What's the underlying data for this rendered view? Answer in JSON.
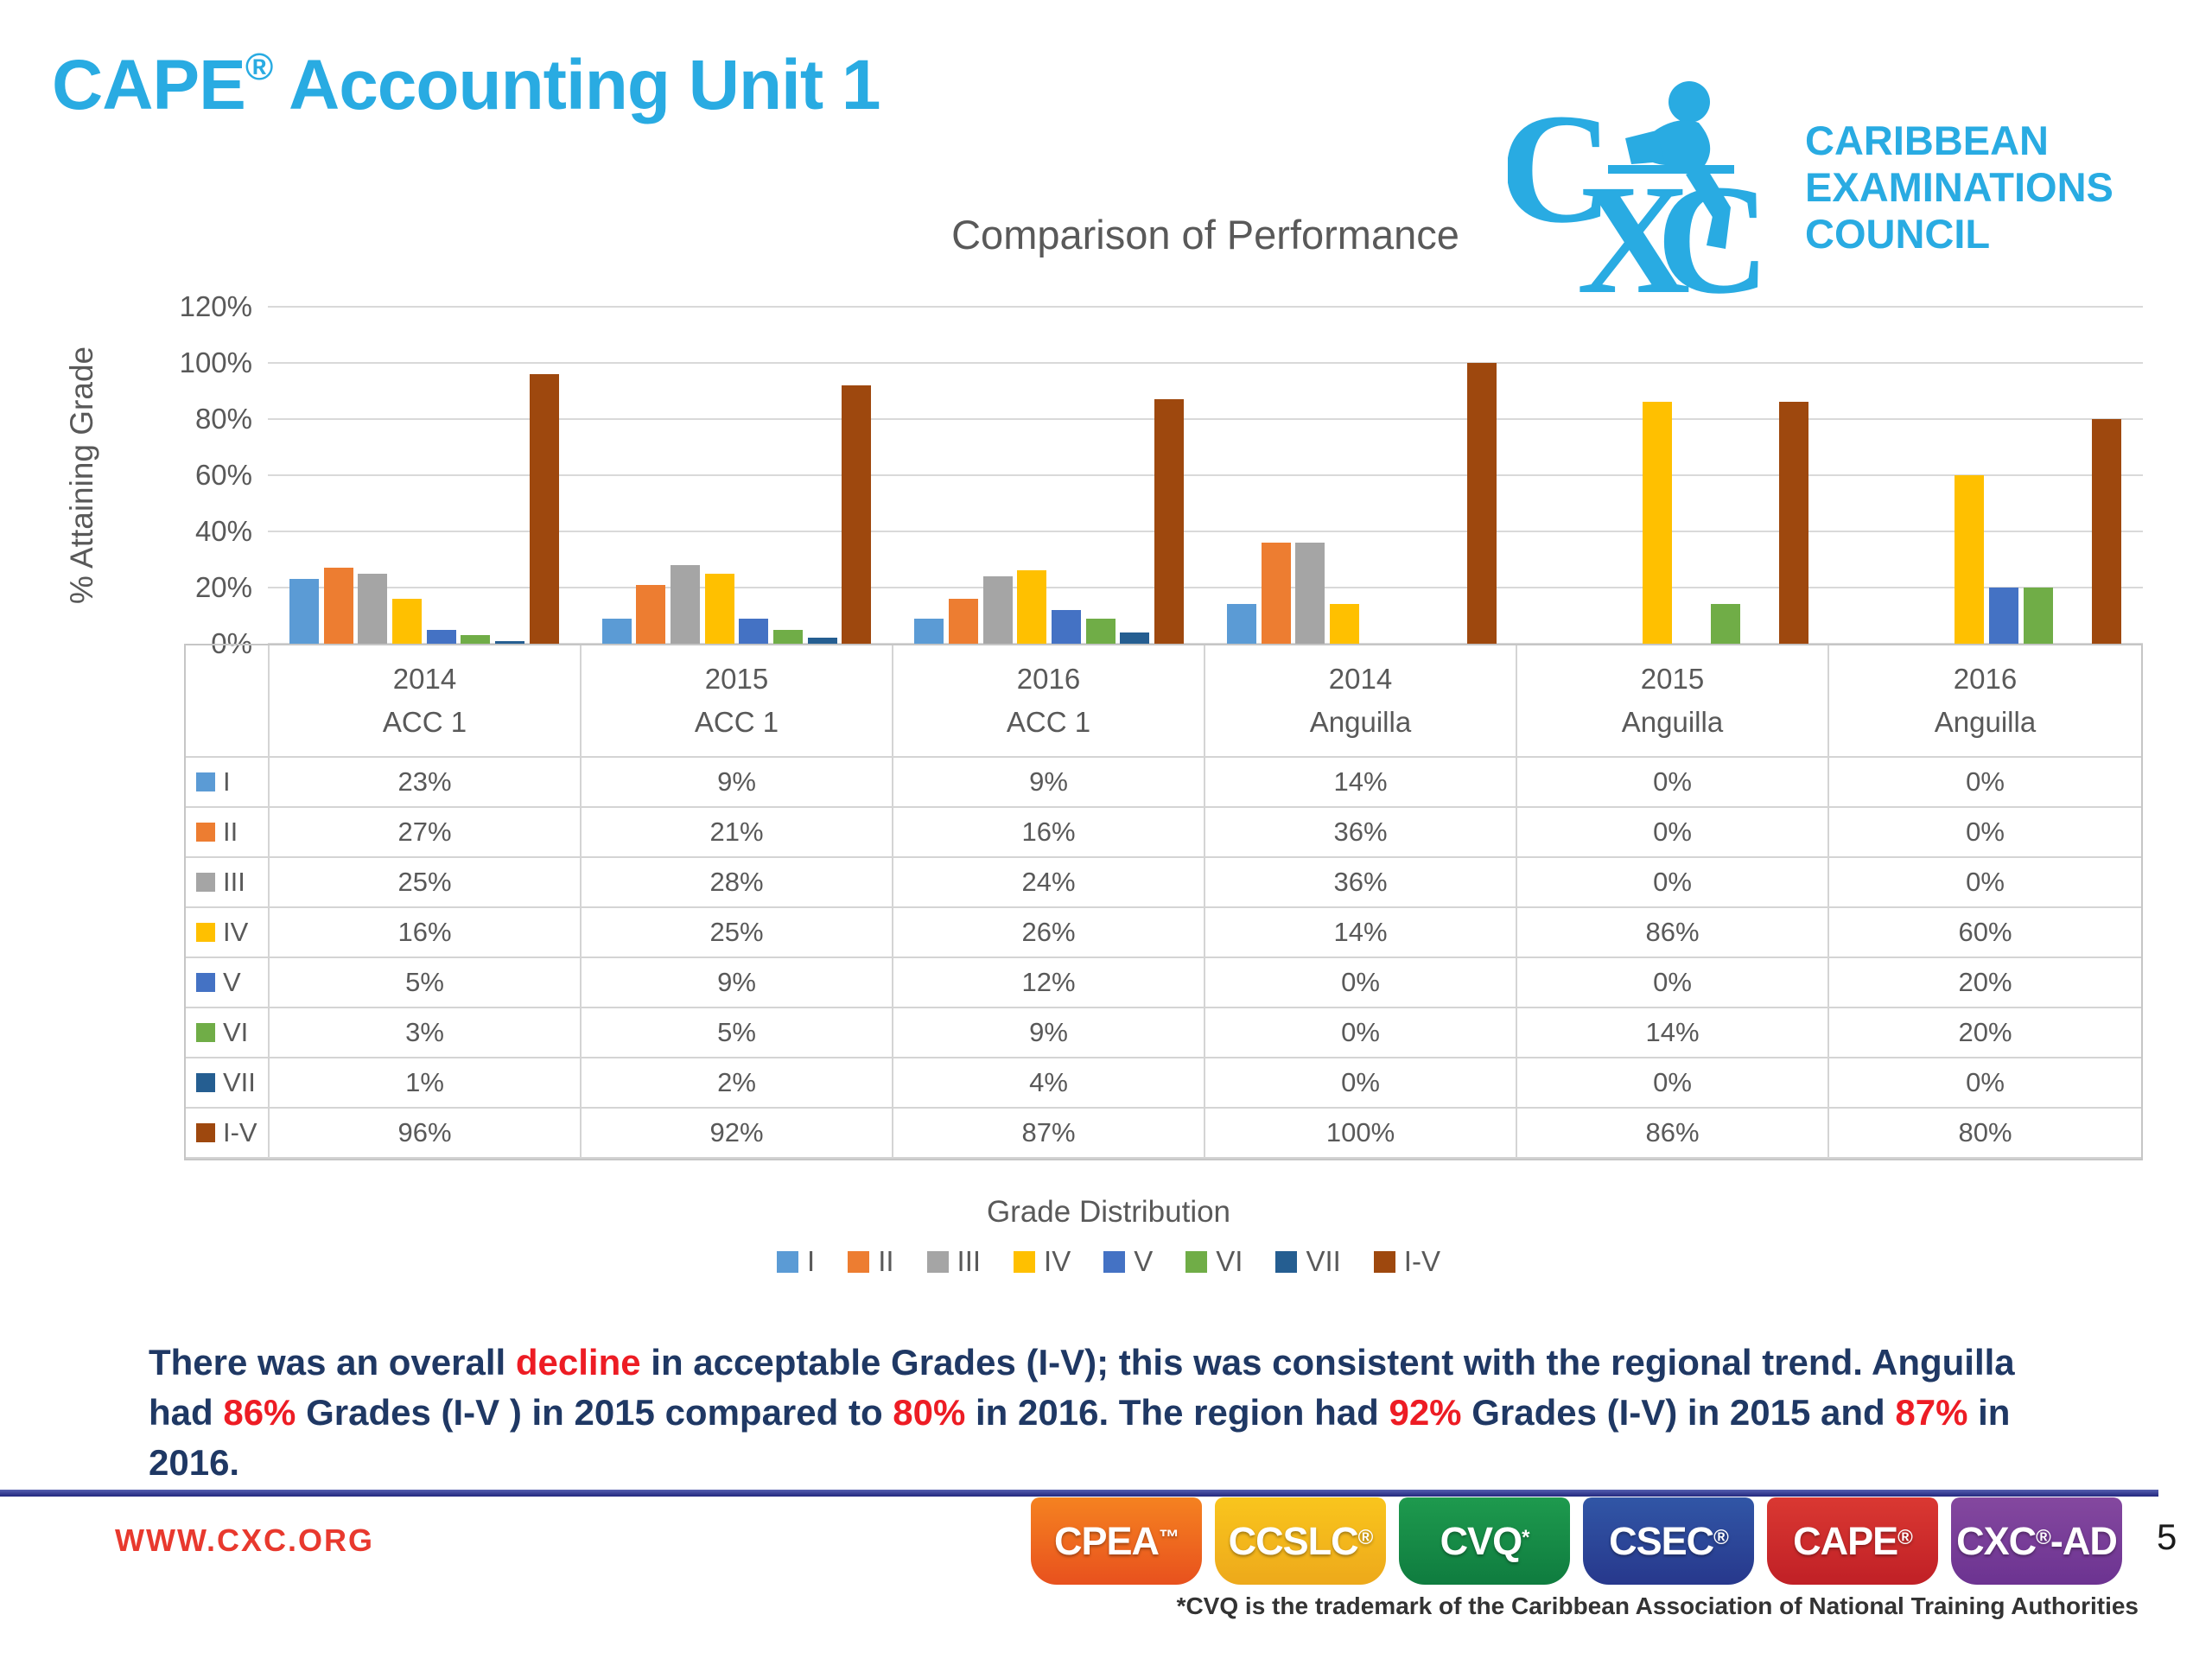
{
  "slide": {
    "title": {
      "prefix": "CAPE",
      "registered_mark": "®",
      "suffix": " Accounting Unit 1"
    },
    "page_number": "5"
  },
  "logo": {
    "letters": "CXC",
    "org_lines": [
      "CARIBBEAN",
      "EXAMINATIONS",
      "COUNCIL"
    ],
    "color": "#29ABE2"
  },
  "chart_data": {
    "type": "bar",
    "title": "Comparison of Performance",
    "ylabel": "% Attaining Grade",
    "xlabel": "Grade Distribution",
    "ylim": [
      0,
      120
    ],
    "yticks": [
      "120%",
      "100%",
      "80%",
      "60%",
      "40%",
      "20%",
      "0%"
    ],
    "grid": true,
    "legend_position": "bottom",
    "value_suffix": "%",
    "groups": [
      {
        "year": "2014",
        "name": "ACC 1"
      },
      {
        "year": "2015",
        "name": "ACC 1"
      },
      {
        "year": "2016",
        "name": "ACC 1"
      },
      {
        "year": "2014",
        "name": "Anguilla"
      },
      {
        "year": "2015",
        "name": "Anguilla"
      },
      {
        "year": "2016",
        "name": "Anguilla"
      }
    ],
    "series": [
      {
        "name": "I",
        "color": "#5B9BD5",
        "values": [
          23,
          9,
          9,
          14,
          0,
          0
        ]
      },
      {
        "name": "II",
        "color": "#ED7D31",
        "values": [
          27,
          21,
          16,
          36,
          0,
          0
        ]
      },
      {
        "name": "III",
        "color": "#A5A5A5",
        "values": [
          25,
          28,
          24,
          36,
          0,
          0
        ]
      },
      {
        "name": "IV",
        "color": "#FFC000",
        "values": [
          16,
          25,
          26,
          14,
          86,
          60
        ]
      },
      {
        "name": "V",
        "color": "#4472C4",
        "values": [
          5,
          9,
          12,
          0,
          0,
          20
        ]
      },
      {
        "name": "VI",
        "color": "#70AD47",
        "values": [
          3,
          5,
          9,
          0,
          14,
          20
        ]
      },
      {
        "name": "VII",
        "color": "#255E91",
        "values": [
          1,
          2,
          4,
          0,
          0,
          0
        ]
      },
      {
        "name": "I-V",
        "color": "#9E480E",
        "values": [
          96,
          92,
          87,
          100,
          86,
          80
        ]
      }
    ]
  },
  "commentary": {
    "text_color": "#1F3864",
    "highlight_color": "#ED1C24",
    "lines": [
      [
        {
          "t": "There was an overall ",
          "red": false
        },
        {
          "t": "decline",
          "red": true
        },
        {
          "t": " in acceptable Grades (I-V); this was consistent with the regional trend. Anguilla",
          "red": false
        }
      ],
      [
        {
          "t": "had ",
          "red": false
        },
        {
          "t": "86%",
          "red": true
        },
        {
          "t": " Grades (I-V ) in 2015 compared to ",
          "red": false
        },
        {
          "t": "80%",
          "red": true
        },
        {
          "t": " in 2016. The region had ",
          "red": false
        },
        {
          "t": "92%",
          "red": true
        },
        {
          "t": " Grades (I-V) in 2015 and ",
          "red": false
        },
        {
          "t": "87%",
          "red": true
        },
        {
          "t": " in",
          "red": false
        }
      ],
      [
        {
          "t": "2016.",
          "red": false
        }
      ]
    ]
  },
  "footer": {
    "website": "WWW.CXC.ORG",
    "badges": [
      {
        "label": "CPEA",
        "sup": "™",
        "suffix": "",
        "color_top": "#F58220",
        "color_bottom": "#E8511E"
      },
      {
        "label": "CCSLC",
        "sup": "®",
        "suffix": "",
        "color_top": "#F9C51D",
        "color_bottom": "#EDA91B"
      },
      {
        "label": "CVQ",
        "sup": "*",
        "suffix": "",
        "color_top": "#1E9A4E",
        "color_bottom": "#0F7C3F"
      },
      {
        "label": "CSEC",
        "sup": "®",
        "suffix": "",
        "color_top": "#3156A6",
        "color_bottom": "#27388C"
      },
      {
        "label": "CAPE",
        "sup": "®",
        "suffix": "",
        "color_top": "#DA3832",
        "color_bottom": "#C02026"
      },
      {
        "label": "CXC",
        "sup": "®",
        "suffix": "-AD",
        "color_top": "#84489F",
        "color_bottom": "#6C3391"
      }
    ],
    "trademark_note": "*CVQ is the trademark of the Caribbean Association of National Training Authorities"
  }
}
